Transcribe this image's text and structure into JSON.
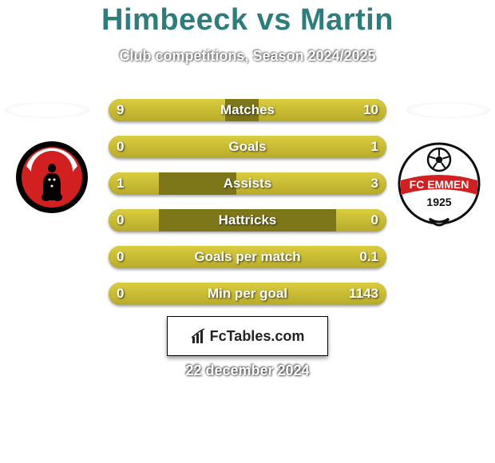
{
  "title": {
    "text": "Himbeeck vs Martin",
    "color": "#2e7d7d",
    "fontsize": 38
  },
  "subtitle": {
    "text": "Club competitions, Season 2024/2025",
    "color": "#ffffff",
    "fontsize": 18
  },
  "bars": {
    "track_color": "#7d7719",
    "fill_color_top": "#dacd3f",
    "fill_color_bottom": "#b8ab2a",
    "fontsize": 17,
    "items": [
      {
        "label": "Matches",
        "left_val": "9",
        "right_val": "10",
        "left_pct": 42,
        "right_pct": 46
      },
      {
        "label": "Goals",
        "left_val": "0",
        "right_val": "1",
        "left_pct": 18,
        "right_pct": 100
      },
      {
        "label": "Assists",
        "left_val": "1",
        "right_val": "3",
        "left_pct": 18,
        "right_pct": 54
      },
      {
        "label": "Hattricks",
        "left_val": "0",
        "right_val": "0",
        "left_pct": 18,
        "right_pct": 18
      },
      {
        "label": "Goals per match",
        "left_val": "0",
        "right_val": "0.1",
        "left_pct": 18,
        "right_pct": 100
      },
      {
        "label": "Min per goal",
        "left_val": "0",
        "right_val": "1143",
        "left_pct": 18,
        "right_pct": 100
      }
    ]
  },
  "brand": {
    "text": "FcTables.com",
    "fontsize": 18
  },
  "date": {
    "text": "22 december 2024",
    "fontsize": 18
  },
  "logos": {
    "left": {
      "outer_bg": "#000000",
      "inner_bg": "#d21f1f",
      "accent": "#ffffff",
      "size": 90
    },
    "right": {
      "outer_bg": "#ffffff",
      "outer_stroke": "#0f0f0f",
      "text": "FC EMMEN",
      "year": "1925",
      "red": "#d21f1f",
      "size": 102
    }
  },
  "shadow_ellipse": {
    "width": 106,
    "height": 20
  }
}
